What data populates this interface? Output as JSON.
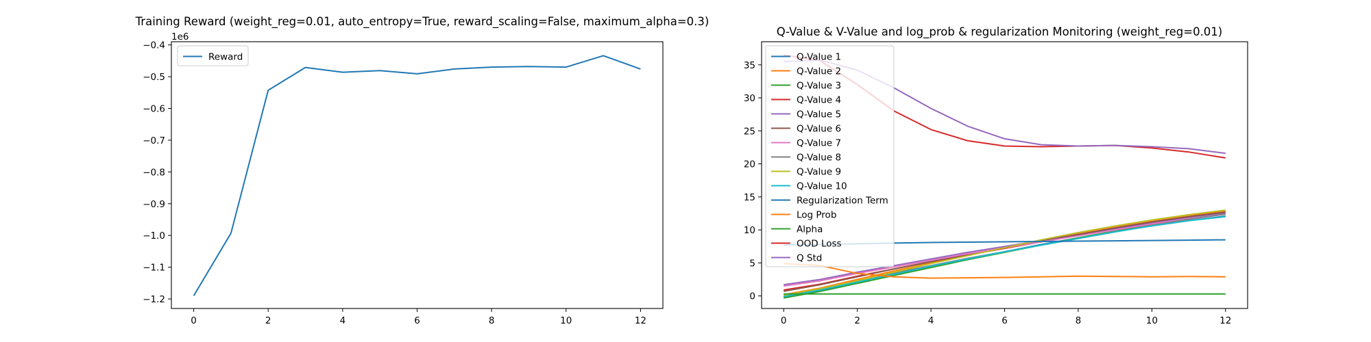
{
  "chart_data": [
    {
      "type": "line",
      "title": "Training Reward (weight_reg=0.01, auto_entropy=True, reward_scaling=False, maximum_alpha=0.3)",
      "xlabel": "",
      "ylabel": "",
      "y_offset_label": "1e6",
      "grid": false,
      "legend_placement": "upper-left",
      "xlim": [
        -0.6,
        12.6
      ],
      "ylim": [
        -1.23,
        -0.39
      ],
      "x_ticks": [
        0,
        2,
        4,
        6,
        8,
        10,
        12
      ],
      "y_ticks": [
        -1.2,
        -1.1,
        -1.0,
        -0.9,
        -0.8,
        -0.7,
        -0.6,
        -0.5,
        -0.4
      ],
      "y_tick_labels": [
        "−1.2",
        "−1.1",
        "−1.0",
        "−0.9",
        "−0.8",
        "−0.7",
        "−0.6",
        "−0.5",
        "−0.4"
      ],
      "x": [
        0,
        1,
        2,
        3,
        4,
        5,
        6,
        7,
        8,
        9,
        10,
        11,
        12
      ],
      "series": [
        {
          "name": "Reward",
          "color": "#1f77b4",
          "values": [
            -1.19,
            -0.993,
            -0.543,
            -0.471,
            -0.486,
            -0.481,
            -0.491,
            -0.476,
            -0.47,
            -0.468,
            -0.47,
            -0.434,
            -0.476
          ]
        }
      ]
    },
    {
      "type": "line",
      "title": "Q-Value & V-Value and log_prob & regularization Monitoring (weight_reg=0.01)",
      "xlabel": "",
      "ylabel": "",
      "grid": false,
      "legend_placement": "upper-left",
      "xlim": [
        -0.6,
        12.6
      ],
      "ylim": [
        -1.9,
        38.5
      ],
      "x_ticks": [
        0,
        2,
        4,
        6,
        8,
        10,
        12
      ],
      "y_ticks": [
        0,
        5,
        10,
        15,
        20,
        25,
        30,
        35
      ],
      "y_tick_labels": [
        "0",
        "5",
        "10",
        "15",
        "20",
        "25",
        "30",
        "35"
      ],
      "x": [
        0,
        1,
        2,
        3,
        4,
        5,
        6,
        7,
        8,
        9,
        10,
        11,
        12
      ],
      "series": [
        {
          "name": "Q-Value 1",
          "color": "#1f77b4",
          "values": [
            -0.2,
            0.8,
            2.0,
            3.3,
            4.5,
            5.6,
            6.7,
            7.8,
            8.8,
            9.8,
            10.6,
            11.4,
            12.1
          ]
        },
        {
          "name": "Q-Value 2",
          "color": "#ff7f0e",
          "values": [
            0.2,
            1.2,
            2.5,
            3.8,
            5.0,
            6.2,
            7.3,
            8.4,
            9.4,
            10.4,
            11.3,
            12.1,
            12.9
          ]
        },
        {
          "name": "Q-Value 3",
          "color": "#2ca02c",
          "values": [
            -0.3,
            0.7,
            1.9,
            3.1,
            4.3,
            5.5,
            6.6,
            7.7,
            8.8,
            9.8,
            10.8,
            11.7,
            12.5
          ]
        },
        {
          "name": "Q-Value 4",
          "color": "#d62728",
          "values": [
            0.9,
            1.8,
            3.0,
            4.1,
            5.2,
            6.2,
            7.2,
            8.2,
            9.2,
            10.2,
            11.1,
            12.0,
            12.7
          ]
        },
        {
          "name": "Q-Value 5",
          "color": "#9467bd",
          "values": [
            1.7,
            2.5,
            3.6,
            4.6,
            5.6,
            6.6,
            7.5,
            8.4,
            9.3,
            10.2,
            11.0,
            11.8,
            12.5
          ]
        },
        {
          "name": "Q-Value 6",
          "color": "#8c564b",
          "values": [
            0.7,
            1.7,
            2.9,
            4.1,
            5.2,
            6.3,
            7.3,
            8.3,
            9.3,
            10.3,
            11.2,
            12.0,
            12.7
          ]
        },
        {
          "name": "Q-Value 7",
          "color": "#e377c2",
          "values": [
            1.5,
            2.3,
            3.4,
            4.4,
            5.4,
            6.4,
            7.3,
            8.2,
            9.1,
            10.0,
            10.9,
            11.7,
            12.4
          ]
        },
        {
          "name": "Q-Value 8",
          "color": "#7f7f7f",
          "values": [
            0.0,
            1.0,
            2.3,
            3.5,
            4.6,
            5.7,
            6.7,
            7.7,
            8.7,
            9.7,
            10.7,
            11.6,
            12.4
          ]
        },
        {
          "name": "Q-Value 9",
          "color": "#bcbd22",
          "values": [
            0.1,
            1.1,
            2.3,
            3.6,
            4.9,
            6.1,
            7.3,
            8.5,
            9.6,
            10.6,
            11.5,
            12.3,
            13.0
          ]
        },
        {
          "name": "Q-Value 10",
          "color": "#17becf",
          "values": [
            -0.1,
            0.9,
            2.1,
            3.3,
            4.5,
            5.6,
            6.7,
            7.7,
            8.7,
            9.7,
            10.6,
            11.4,
            12.0
          ]
        },
        {
          "name": "Regularization Term",
          "color": "#1f77b4",
          "values": [
            7.7,
            7.8,
            7.9,
            8.0,
            8.1,
            8.15,
            8.2,
            8.25,
            8.3,
            8.35,
            8.4,
            8.45,
            8.5
          ]
        },
        {
          "name": "Log Prob",
          "color": "#ff7f0e",
          "values": [
            4.9,
            4.6,
            3.4,
            2.9,
            2.7,
            2.75,
            2.8,
            2.9,
            3.0,
            2.95,
            2.9,
            2.95,
            2.9
          ]
        },
        {
          "name": "Alpha",
          "color": "#2ca02c",
          "values": [
            0.3,
            0.3,
            0.3,
            0.3,
            0.3,
            0.3,
            0.3,
            0.3,
            0.3,
            0.3,
            0.3,
            0.3,
            0.3
          ]
        },
        {
          "name": "OOD Loss",
          "color": "#d62728",
          "values": [
            36.5,
            35.6,
            32.0,
            28.0,
            25.2,
            23.5,
            22.7,
            22.6,
            22.7,
            22.8,
            22.4,
            21.8,
            20.9
          ]
        },
        {
          "name": "Q Std",
          "color": "#9467bd",
          "values": [
            35.5,
            35.7,
            34.2,
            31.5,
            28.4,
            25.7,
            23.8,
            22.9,
            22.7,
            22.8,
            22.6,
            22.3,
            21.6
          ]
        }
      ]
    }
  ]
}
